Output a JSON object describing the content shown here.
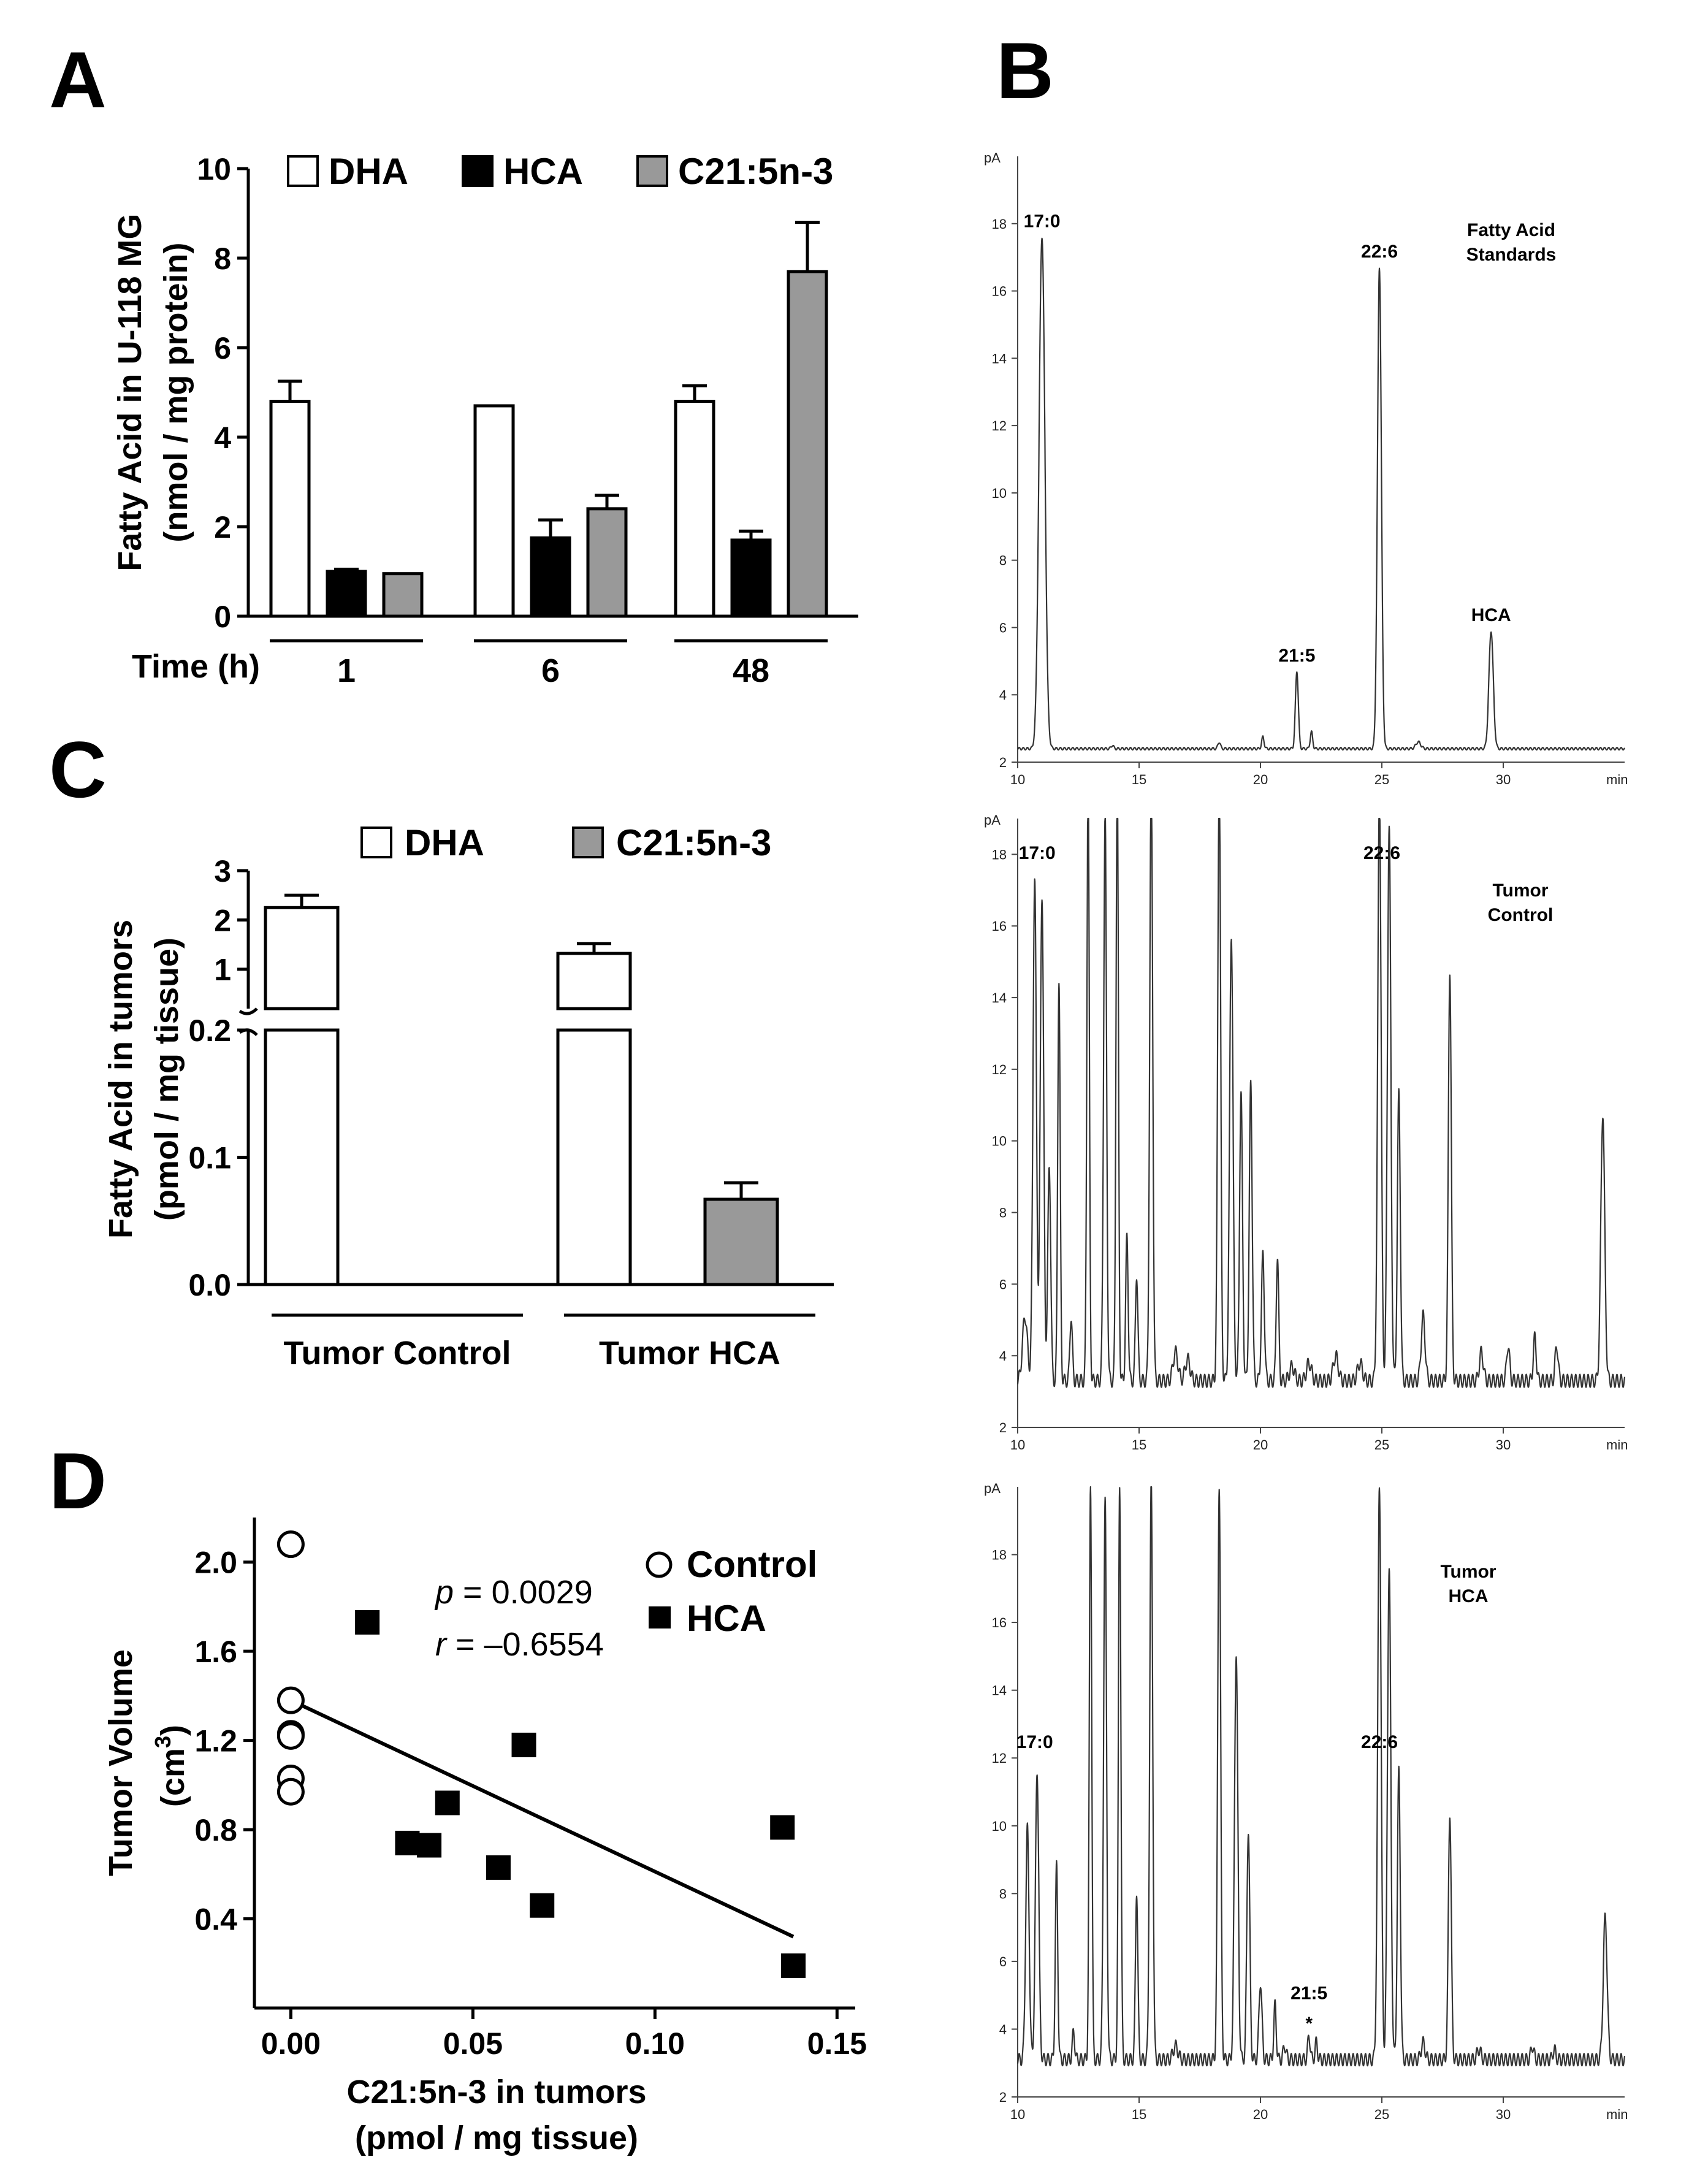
{
  "panels": {
    "A": "A",
    "B": "B",
    "C": "C",
    "D": "D"
  },
  "chart_data": [
    {
      "id": "A",
      "type": "bar",
      "ylabel_lines": [
        "Fatty Acid in U-118 MG",
        "(nmol / mg protein)"
      ],
      "xlabel": "Time (h)",
      "categories": [
        "1",
        "6",
        "48"
      ],
      "ylim": [
        0,
        10
      ],
      "yticks": [
        "0",
        "2",
        "4",
        "6",
        "8",
        "10"
      ],
      "legend_position": "top",
      "series": [
        {
          "name": "DHA",
          "color": "#ffffff",
          "values": [
            4.8,
            4.7,
            4.8
          ],
          "errors": [
            0.45,
            0,
            0.35
          ]
        },
        {
          "name": "HCA",
          "color": "#000000",
          "values": [
            1.0,
            1.75,
            1.7
          ],
          "errors": [
            0.05,
            0.4,
            0.2
          ]
        },
        {
          "name": "C21:5n-3",
          "color": "#999999",
          "values": [
            0.95,
            2.4,
            7.7
          ],
          "errors": [
            0,
            0.3,
            1.1
          ]
        }
      ]
    },
    {
      "id": "B",
      "type": "line",
      "xlabel": "min",
      "ylabel": "pA",
      "xticks": [
        "10",
        "15",
        "20",
        "25",
        "30"
      ],
      "xlim": [
        10,
        35
      ],
      "chromatograms": [
        {
          "title_lines": [
            "Fatty Acid",
            "Standards"
          ],
          "yticks": [
            "2",
            "4",
            "6",
            "8",
            "10",
            "12",
            "14",
            "16",
            "18"
          ],
          "ylim": [
            2,
            20
          ],
          "peak_labels": [
            {
              "text": "17:0",
              "x": 11.0,
              "y": 17.6
            },
            {
              "text": "21:5",
              "x": 21.5,
              "y": 4.7
            },
            {
              "text": "22:6",
              "x": 24.9,
              "y": 16.7
            },
            {
              "text": "HCA",
              "x": 29.5,
              "y": 5.9
            }
          ],
          "baseline": 2.4,
          "peaks": [
            [
              11.0,
              15.2,
              0.12
            ],
            [
              13.9,
              0.1,
              0.05
            ],
            [
              18.3,
              0.2,
              0.05
            ],
            [
              20.1,
              0.35,
              0.05
            ],
            [
              21.5,
              2.3,
              0.06
            ],
            [
              22.1,
              0.5,
              0.05
            ],
            [
              24.9,
              14.3,
              0.08
            ],
            [
              26.5,
              0.2,
              0.1
            ],
            [
              29.5,
              3.5,
              0.09
            ]
          ]
        },
        {
          "title_lines": [
            "Tumor",
            "Control"
          ],
          "yticks": [
            "2",
            "4",
            "6",
            "8",
            "10",
            "12",
            "14",
            "16",
            "18"
          ],
          "ylim": [
            2,
            19
          ],
          "peak_labels": [
            {
              "text": "17:0",
              "x": 10.8,
              "y": 17.6
            },
            {
              "text": "22:6",
              "x": 25.0,
              "y": 17.6
            }
          ],
          "baseline": 3.3,
          "peaks": [
            [
              10.3,
              1.8,
              0.1
            ],
            [
              10.7,
              14.0,
              0.07
            ],
            [
              11.0,
              13.6,
              0.07
            ],
            [
              11.3,
              6.0,
              0.06
            ],
            [
              11.7,
              11.2,
              0.05
            ],
            [
              12.2,
              1.8,
              0.05
            ],
            [
              12.9,
              17.0,
              0.05
            ],
            [
              13.6,
              15.8,
              0.06
            ],
            [
              14.1,
              17.0,
              0.05
            ],
            [
              14.5,
              4.0,
              0.05
            ],
            [
              14.9,
              3.0,
              0.05
            ],
            [
              15.5,
              17.0,
              0.06
            ],
            [
              16.5,
              0.8,
              0.1
            ],
            [
              17.0,
              0.6,
              0.1
            ],
            [
              18.3,
              17.0,
              0.06
            ],
            [
              18.8,
              12.5,
              0.07
            ],
            [
              19.2,
              8.0,
              0.06
            ],
            [
              19.6,
              8.3,
              0.06
            ],
            [
              20.1,
              3.5,
              0.06
            ],
            [
              20.7,
              3.5,
              0.05
            ],
            [
              21.3,
              0.4,
              0.1
            ],
            [
              22.0,
              0.5,
              0.1
            ],
            [
              23.1,
              0.7,
              0.1
            ],
            [
              24.1,
              0.5,
              0.1
            ],
            [
              24.9,
              16.5,
              0.07
            ],
            [
              25.3,
              15.5,
              0.07
            ],
            [
              25.7,
              8.0,
              0.06
            ],
            [
              26.7,
              1.8,
              0.08
            ],
            [
              27.8,
              11.5,
              0.06
            ],
            [
              29.1,
              0.8,
              0.08
            ],
            [
              30.2,
              1.0,
              0.06
            ],
            [
              31.3,
              1.2,
              0.06
            ],
            [
              32.2,
              1.0,
              0.06
            ],
            [
              34.1,
              7.5,
              0.08
            ]
          ]
        },
        {
          "title_lines": [
            "Tumor",
            "HCA"
          ],
          "yticks": [
            "2",
            "4",
            "6",
            "8",
            "10",
            "12",
            "14",
            "16",
            "18"
          ],
          "ylim": [
            2,
            20
          ],
          "peak_labels": [
            {
              "text": "17:0",
              "x": 10.7,
              "y": 12.0
            },
            {
              "text": "22:6",
              "x": 24.9,
              "y": 12.0
            },
            {
              "text": "21:5",
              "x": 22.0,
              "y": 4.6
            },
            {
              "text": "*",
              "x": 22.0,
              "y": 3.7
            }
          ],
          "baseline": 3.1,
          "peaks": [
            [
              10.4,
              6.8,
              0.07
            ],
            [
              10.8,
              8.5,
              0.07
            ],
            [
              11.6,
              5.7,
              0.05
            ],
            [
              12.3,
              0.8,
              0.05
            ],
            [
              13.0,
              17.0,
              0.05
            ],
            [
              13.6,
              16.5,
              0.06
            ],
            [
              14.2,
              17.0,
              0.05
            ],
            [
              14.9,
              5.0,
              0.05
            ],
            [
              15.5,
              17.0,
              0.06
            ],
            [
              16.5,
              0.4,
              0.1
            ],
            [
              18.3,
              17.0,
              0.06
            ],
            [
              19.0,
              12.0,
              0.07
            ],
            [
              19.5,
              6.8,
              0.06
            ],
            [
              20.0,
              2.3,
              0.06
            ],
            [
              20.6,
              1.6,
              0.05
            ],
            [
              21.0,
              0.4,
              0.06
            ],
            [
              22.0,
              0.7,
              0.05
            ],
            [
              22.3,
              0.5,
              0.05
            ],
            [
              24.9,
              17.0,
              0.07
            ],
            [
              25.3,
              14.5,
              0.07
            ],
            [
              25.7,
              8.5,
              0.06
            ],
            [
              26.7,
              0.5,
              0.08
            ],
            [
              27.8,
              7.3,
              0.06
            ],
            [
              29.0,
              0.3,
              0.08
            ],
            [
              31.2,
              0.4,
              0.06
            ],
            [
              32.1,
              0.3,
              0.06
            ],
            [
              34.2,
              4.2,
              0.08
            ]
          ]
        }
      ]
    },
    {
      "id": "C",
      "type": "bar",
      "ylabel_lines": [
        "Fatty Acid in tumors",
        "(pmol / mg tissue)"
      ],
      "categories": [
        "Tumor Control",
        "Tumor HCA"
      ],
      "y_axis_break": true,
      "ylim_lower": [
        0,
        0.2
      ],
      "ylim_upper": [
        0.2,
        3
      ],
      "yticks_lower": [
        "0.0",
        "0.1",
        "0.2"
      ],
      "yticks_upper": [
        "1",
        "2",
        "3"
      ],
      "legend_position": "top",
      "series": [
        {
          "name": "DHA",
          "color": "#ffffff",
          "values": [
            2.25,
            1.32
          ],
          "errors": [
            0.25,
            0.2
          ]
        },
        {
          "name": "C21:5n-3",
          "color": "#999999",
          "values": [
            0,
            0.067
          ],
          "errors": [
            0,
            0.013
          ]
        }
      ]
    },
    {
      "id": "D",
      "type": "scatter",
      "xlabel_lines": [
        "C21:5n-3 in tumors",
        "(pmol / mg tissue)"
      ],
      "ylabel_lines": [
        "Tumor Volume",
        "(cm",
        "3",
        ")"
      ],
      "xlim": [
        -0.01,
        0.155
      ],
      "ylim": [
        0.0,
        2.2
      ],
      "xticks": [
        "0.00",
        "0.05",
        "0.10",
        "0.15"
      ],
      "yticks": [
        "0.4",
        "0.8",
        "1.2",
        "1.6",
        "2.0"
      ],
      "legend_position": "top-right",
      "stats": {
        "p_label": "p",
        "p_value": " = 0.0029",
        "r_label": "r",
        "r_value": " = –0.6554"
      },
      "regression": {
        "x": [
          0.0,
          0.138
        ],
        "y": [
          1.38,
          0.32
        ]
      },
      "series": [
        {
          "name": "Control",
          "marker": "open-circle",
          "x": [
            0,
            0,
            0,
            0,
            0,
            0
          ],
          "y": [
            2.08,
            1.38,
            1.23,
            1.22,
            1.03,
            0.97
          ]
        },
        {
          "name": "HCA",
          "marker": "filled-square",
          "x": [
            0.021,
            0.032,
            0.038,
            0.043,
            0.057,
            0.064,
            0.069,
            0.135,
            0.138
          ],
          "y": [
            1.73,
            0.74,
            0.73,
            0.92,
            0.63,
            1.18,
            0.46,
            0.81,
            0.19
          ]
        }
      ]
    }
  ]
}
